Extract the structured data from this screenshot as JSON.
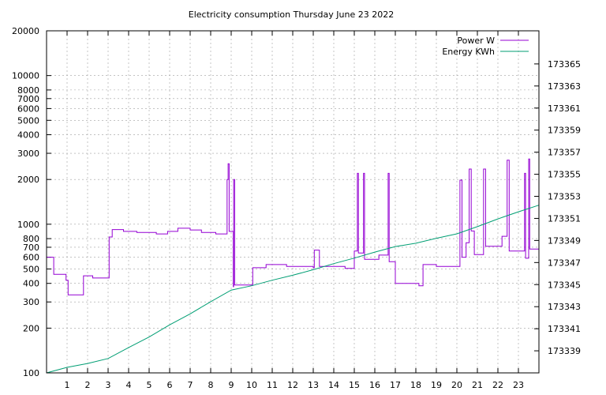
{
  "chart_data": {
    "type": "line",
    "title": "Electricity consumption Thursday June 23 2022",
    "x": {
      "range": [
        0,
        24
      ],
      "ticks": [
        1,
        2,
        3,
        4,
        5,
        6,
        7,
        8,
        9,
        10,
        11,
        12,
        13,
        14,
        15,
        16,
        17,
        18,
        19,
        20,
        21,
        22,
        23
      ]
    },
    "y_left": {
      "scale": "log",
      "range": [
        100,
        20000
      ],
      "ticks": [
        100,
        200,
        300,
        400,
        500,
        600,
        700,
        800,
        1000,
        2000,
        3000,
        4000,
        5000,
        6000,
        7000,
        8000,
        10000,
        20000
      ]
    },
    "y_right": {
      "scale": "linear",
      "range": [
        173337,
        173368
      ],
      "ticks": [
        173339,
        173341,
        173343,
        173345,
        173347,
        173349,
        173351,
        173353,
        173355,
        173357,
        173359,
        173361,
        173363,
        173365
      ]
    },
    "grid": true,
    "legend_position": "top-right",
    "series": [
      {
        "name": "Power W",
        "axis": "left",
        "color": "#9400d3",
        "step": true,
        "points": [
          [
            0,
            600
          ],
          [
            0.35,
            460
          ],
          [
            0.95,
            420
          ],
          [
            1.05,
            335
          ],
          [
            1.8,
            450
          ],
          [
            2.25,
            435
          ],
          [
            3.05,
            820
          ],
          [
            3.2,
            920
          ],
          [
            3.75,
            895
          ],
          [
            4.4,
            880
          ],
          [
            5.35,
            860
          ],
          [
            5.9,
            895
          ],
          [
            6.4,
            940
          ],
          [
            7.0,
            915
          ],
          [
            7.55,
            880
          ],
          [
            8.25,
            860
          ],
          [
            8.8,
            2000
          ],
          [
            8.85,
            2550
          ],
          [
            8.9,
            895
          ],
          [
            9.1,
            380
          ],
          [
            9.12,
            2000
          ],
          [
            9.17,
            390
          ],
          [
            10.05,
            510
          ],
          [
            10.7,
            535
          ],
          [
            11.7,
            520
          ],
          [
            13.0,
            510
          ],
          [
            13.05,
            670
          ],
          [
            13.3,
            520
          ],
          [
            14.55,
            505
          ],
          [
            15.0,
            660
          ],
          [
            15.15,
            2200
          ],
          [
            15.2,
            640
          ],
          [
            15.45,
            2200
          ],
          [
            15.5,
            580
          ],
          [
            16.2,
            620
          ],
          [
            16.65,
            2200
          ],
          [
            16.7,
            560
          ],
          [
            17.0,
            400
          ],
          [
            18.15,
            385
          ],
          [
            18.35,
            535
          ],
          [
            19.0,
            520
          ],
          [
            20.15,
            1980
          ],
          [
            20.25,
            600
          ],
          [
            20.45,
            750
          ],
          [
            20.6,
            2350
          ],
          [
            20.7,
            900
          ],
          [
            20.85,
            625
          ],
          [
            21.3,
            2350
          ],
          [
            21.4,
            710
          ],
          [
            22.2,
            830
          ],
          [
            22.45,
            2700
          ],
          [
            22.55,
            660
          ],
          [
            23.3,
            2200
          ],
          [
            23.35,
            590
          ],
          [
            23.5,
            2750
          ],
          [
            23.55,
            680
          ],
          [
            24,
            680
          ]
        ]
      },
      {
        "name": "Energy KWh",
        "axis": "right",
        "color": "#009e73",
        "step": false,
        "points": [
          [
            0,
            173337.0
          ],
          [
            1,
            173337.5
          ],
          [
            2,
            173337.85
          ],
          [
            3,
            173338.3
          ],
          [
            4,
            173339.3
          ],
          [
            5,
            173340.25
          ],
          [
            6,
            173341.35
          ],
          [
            7,
            173342.35
          ],
          [
            8,
            173343.45
          ],
          [
            9,
            173344.5
          ],
          [
            10,
            173344.9
          ],
          [
            11,
            173345.4
          ],
          [
            12,
            173345.85
          ],
          [
            13,
            173346.35
          ],
          [
            14,
            173346.9
          ],
          [
            15,
            173347.4
          ],
          [
            16,
            173347.95
          ],
          [
            17,
            173348.45
          ],
          [
            18,
            173348.75
          ],
          [
            19,
            173349.2
          ],
          [
            20,
            173349.6
          ],
          [
            21,
            173350.25
          ],
          [
            22,
            173350.95
          ],
          [
            23,
            173351.6
          ],
          [
            24,
            173352.2
          ]
        ]
      }
    ]
  }
}
